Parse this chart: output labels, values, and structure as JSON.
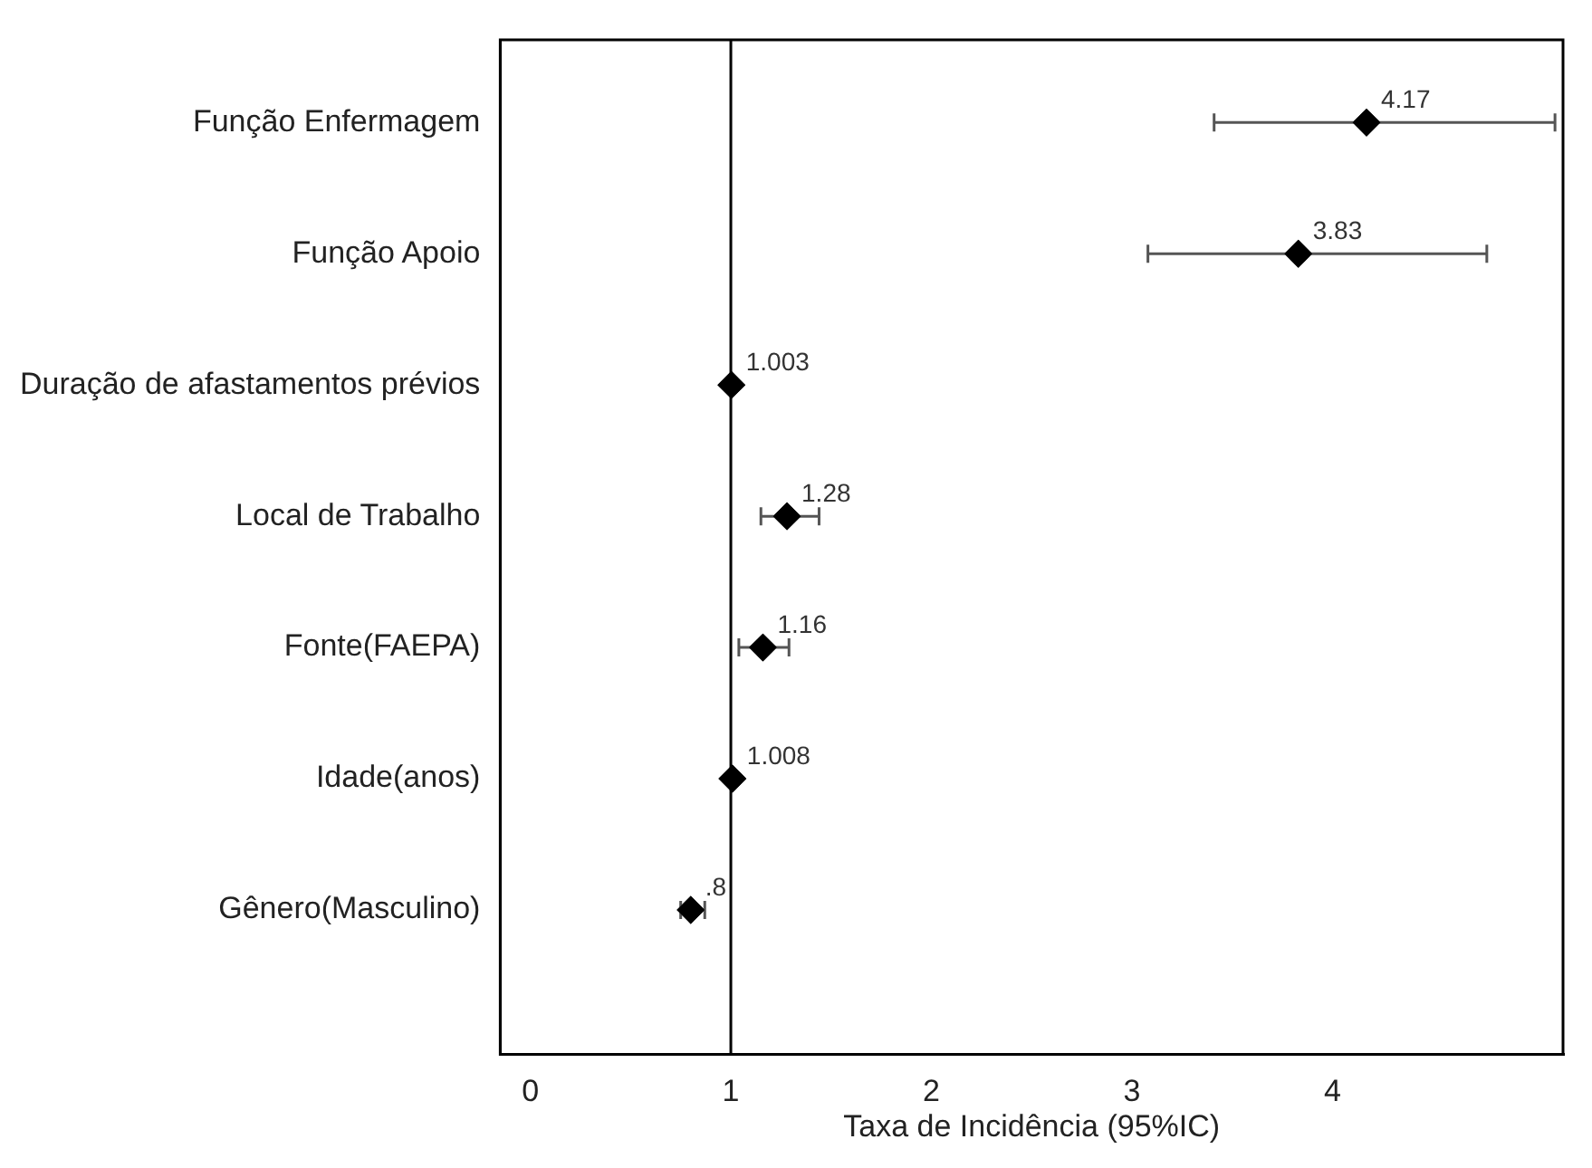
{
  "chart_data": {
    "type": "scatter",
    "orientation": "horizontal",
    "xlabel": "Taxa de Incidência (95%IC)",
    "categories": [
      "Função Enfermagem",
      "Função Apoio",
      "Duração de afastamentos prévios",
      "Local de Trabalho",
      "Fonte(FAEPA)",
      "Idade(anos)",
      "Gênero(Masculino)"
    ],
    "values": [
      4.17,
      3.83,
      1.003,
      1.28,
      1.16,
      1.008,
      0.8
    ],
    "value_labels": [
      "4.17",
      "3.83",
      "1.003",
      "1.28",
      "1.16",
      "1.008",
      ".8"
    ],
    "errors": [
      [
        3.41,
        5.11
      ],
      [
        3.08,
        4.77
      ],
      null,
      [
        1.15,
        1.44
      ],
      [
        1.04,
        1.29
      ],
      null,
      [
        0.75,
        0.87
      ]
    ],
    "color": "#000000",
    "marker": "diamond",
    "xlim": [
      -0.15,
      5.15
    ],
    "xticks": [
      0,
      1,
      2,
      3,
      4
    ],
    "ref_lines": [
      {
        "axis": "x",
        "value": 1,
        "color": "#000000"
      }
    ],
    "grid": false,
    "legend": false
  }
}
